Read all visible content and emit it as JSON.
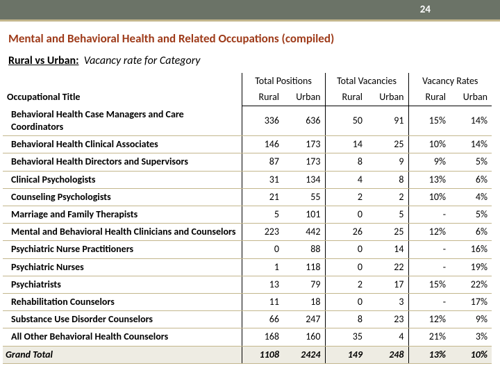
{
  "header": {
    "page_number": "24"
  },
  "section": {
    "title": "Mental and Behavioral Health and Related Occupations (compiled)",
    "subtitle_label": "Rural vs Urban:",
    "subtitle_value": "Vacancy rate for Category"
  },
  "table": {
    "group_headers": [
      "Total Positions",
      "Total Vacancies",
      "Vacancy Rates"
    ],
    "col_title": "Occupational Title",
    "sub_headers": [
      "Rural",
      "Urban",
      "Rural",
      "Urban",
      "Rural",
      "Urban"
    ],
    "rows": [
      {
        "title": "Behavioral Health Case Managers and Care Coordinators",
        "v": [
          "336",
          "636",
          "50",
          "91",
          "15%",
          "14%"
        ]
      },
      {
        "title": "Behavioral Health Clinical Associates",
        "v": [
          "146",
          "173",
          "14",
          "25",
          "10%",
          "14%"
        ]
      },
      {
        "title": "Behavioral Health Directors and Supervisors",
        "v": [
          "87",
          "173",
          "8",
          "9",
          "9%",
          "5%"
        ]
      },
      {
        "title": "Clinical Psychologists",
        "v": [
          "31",
          "134",
          "4",
          "8",
          "13%",
          "6%"
        ]
      },
      {
        "title": "Counseling Psychologists",
        "v": [
          "21",
          "55",
          "2",
          "2",
          "10%",
          "4%"
        ]
      },
      {
        "title": "Marriage and Family Therapists",
        "v": [
          "5",
          "101",
          "0",
          "5",
          "-",
          "5%"
        ]
      },
      {
        "title": "Mental and Behavioral Health Clinicians and Counselors",
        "v": [
          "223",
          "442",
          "26",
          "25",
          "12%",
          "6%"
        ]
      },
      {
        "title": "Psychiatric Nurse Practitioners",
        "v": [
          "0",
          "88",
          "0",
          "14",
          "-",
          "16%"
        ]
      },
      {
        "title": "Psychiatric Nurses",
        "v": [
          "1",
          "118",
          "0",
          "22",
          "-",
          "19%"
        ]
      },
      {
        "title": "Psychiatrists",
        "v": [
          "13",
          "79",
          "2",
          "17",
          "15%",
          "22%"
        ]
      },
      {
        "title": "Rehabilitation Counselors",
        "v": [
          "11",
          "18",
          "0",
          "3",
          "-",
          "17%"
        ]
      },
      {
        "title": "Substance Use Disorder Counselors",
        "v": [
          "66",
          "247",
          "8",
          "23",
          "12%",
          "9%"
        ]
      },
      {
        "title": "All Other Behavioral Health Counselors",
        "v": [
          "168",
          "160",
          "35",
          "4",
          "21%",
          "3%"
        ]
      }
    ],
    "total": {
      "title": "Grand Total",
      "v": [
        "1108",
        "2424",
        "149",
        "248",
        "13%",
        "10%"
      ]
    }
  },
  "colors": {
    "header_bg": "#6b7367",
    "accent_underline": "#c3b68c",
    "title_color": "#9e3b1a",
    "row_rule": "#c3b68c",
    "total_bg": "#eeece3"
  }
}
